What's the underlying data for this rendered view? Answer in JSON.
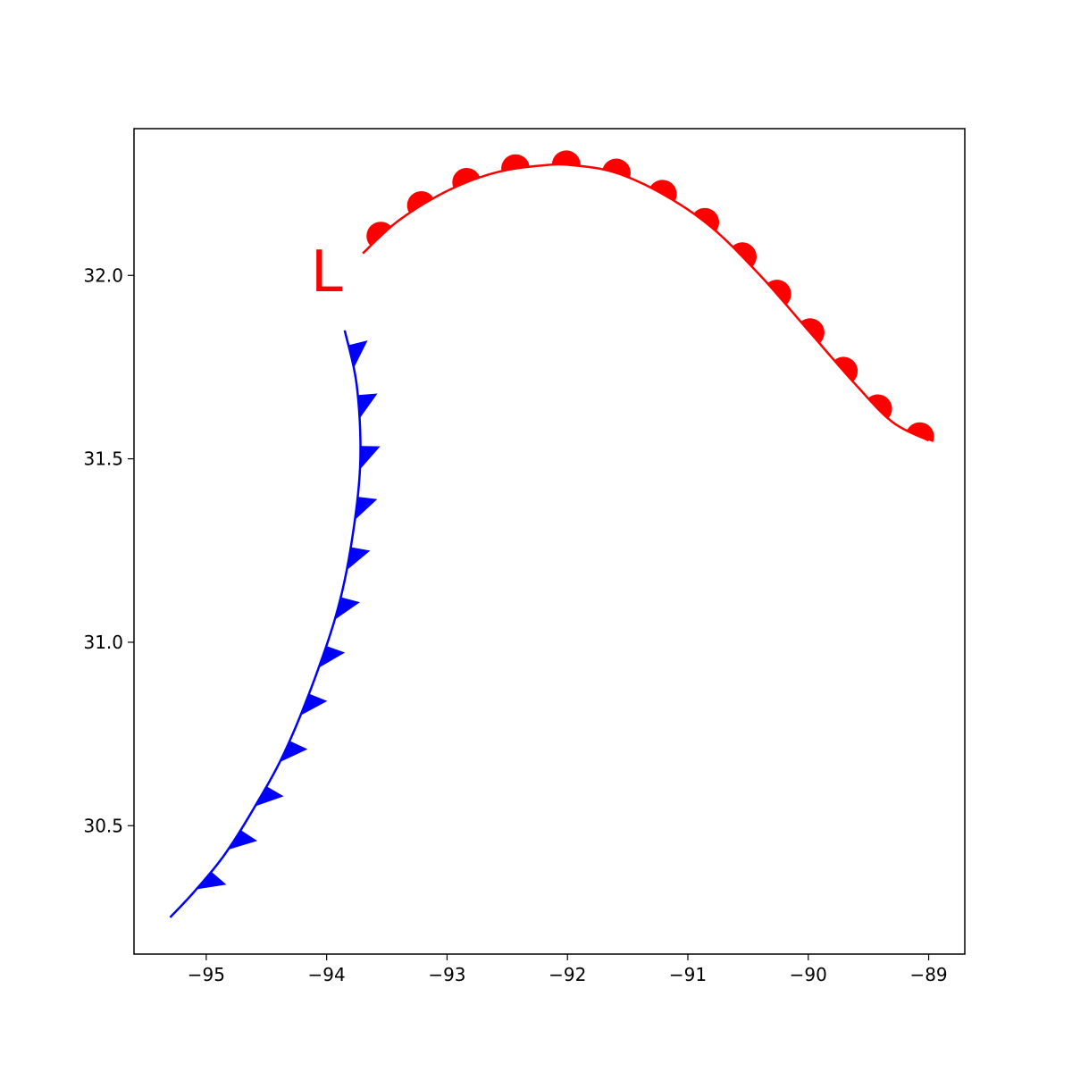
{
  "chart_data": {
    "type": "line",
    "title": "",
    "xlabel": "",
    "ylabel": "",
    "xlim": [
      -95.6,
      -88.7
    ],
    "ylim": [
      30.15,
      32.4
    ],
    "grid": false,
    "legend": "none",
    "x_ticks": [
      -95,
      -94,
      -93,
      -92,
      -91,
      -90,
      -89
    ],
    "x_tick_labels": [
      "−95",
      "−94",
      "−93",
      "−92",
      "−91",
      "−90",
      "−89"
    ],
    "y_ticks": [
      30.5,
      31.0,
      31.5,
      32.0
    ],
    "y_tick_labels": [
      "30.5",
      "31.0",
      "31.5",
      "32.0"
    ],
    "series": [
      {
        "front_type": "warm",
        "color": "#ff0000",
        "marker": "semicircle",
        "x": [
          -93.7,
          -93.4,
          -93.0,
          -92.6,
          -92.2,
          -91.95,
          -91.6,
          -91.2,
          -90.8,
          -90.4,
          -90.0,
          -89.6,
          -89.3,
          -89.0
        ],
        "y": [
          32.06,
          32.15,
          32.23,
          32.28,
          32.3,
          32.3,
          32.28,
          32.22,
          32.13,
          32.0,
          31.85,
          31.7,
          31.6,
          31.55
        ]
      },
      {
        "front_type": "cold",
        "color": "#0000ff",
        "marker": "triangle",
        "x": [
          -93.85,
          -93.75,
          -93.72,
          -93.78,
          -93.9,
          -94.1,
          -94.35,
          -94.6,
          -94.85,
          -95.1,
          -95.3
        ],
        "y": [
          31.85,
          31.7,
          31.5,
          31.3,
          31.1,
          30.9,
          30.7,
          30.55,
          30.42,
          30.32,
          30.25
        ]
      }
    ],
    "annotations": [
      {
        "text": "L",
        "x": -94.0,
        "y": 32.0,
        "color": "#ff0000"
      }
    ]
  }
}
